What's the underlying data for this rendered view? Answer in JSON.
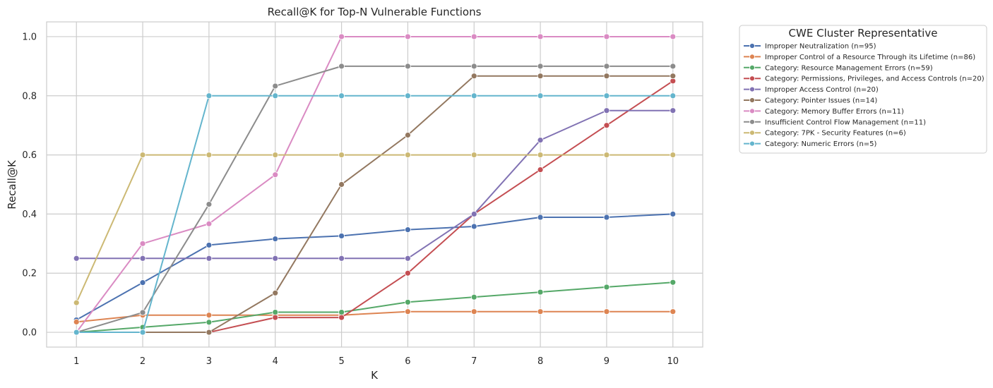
{
  "chart_data": {
    "type": "line",
    "title": "Recall@K for Top-N Vulnerable Functions",
    "xlabel": "K",
    "ylabel": "Recall@K",
    "x": [
      1,
      2,
      3,
      4,
      5,
      6,
      7,
      8,
      9,
      10
    ],
    "x_ticks": [
      "1",
      "2",
      "3",
      "4",
      "5",
      "6",
      "7",
      "8",
      "9",
      "10"
    ],
    "xlim": [
      0.55,
      10.45
    ],
    "ylim": [
      -0.05,
      1.05
    ],
    "y_ticks": [
      "0.0",
      "0.2",
      "0.4",
      "0.6",
      "0.8",
      "1.0"
    ],
    "grid": true,
    "legend": {
      "title": "CWE Cluster Representative",
      "placement": "outside-upper-right"
    },
    "series": [
      {
        "name": "Improper Neutralization (n=95)",
        "color": "#4c72b0",
        "values": [
          0.042,
          0.168,
          0.295,
          0.316,
          0.326,
          0.347,
          0.358,
          0.389,
          0.389,
          0.4
        ]
      },
      {
        "name": "Improper Control of a Resource Through its Lifetime (n=86)",
        "color": "#dd8452",
        "values": [
          0.035,
          0.058,
          0.058,
          0.058,
          0.058,
          0.07,
          0.07,
          0.07,
          0.07,
          0.07
        ]
      },
      {
        "name": "Category: Resource Management Errors (n=59)",
        "color": "#55a868",
        "values": [
          0.0,
          0.017,
          0.034,
          0.068,
          0.068,
          0.102,
          0.119,
          0.136,
          0.153,
          0.169
        ]
      },
      {
        "name": "Category: Permissions, Privileges, and Access Controls (n=20)",
        "color": "#c44e52",
        "values": [
          0.0,
          0.0,
          0.0,
          0.05,
          0.05,
          0.2,
          0.4,
          0.55,
          0.7,
          0.85
        ]
      },
      {
        "name": "Improper Access Control (n=20)",
        "color": "#8172b3",
        "values": [
          0.25,
          0.25,
          0.25,
          0.25,
          0.25,
          0.25,
          0.4,
          0.65,
          0.75,
          0.75
        ]
      },
      {
        "name": "Category: Pointer Issues (n=14)",
        "color": "#937860",
        "values": [
          0.0,
          0.0,
          0.0,
          0.133,
          0.5,
          0.667,
          0.867,
          0.867,
          0.867,
          0.867
        ]
      },
      {
        "name": "Category: Memory Buffer Errors (n=11)",
        "color": "#da8bc3",
        "values": [
          0.0,
          0.3,
          0.367,
          0.533,
          1.0,
          1.0,
          1.0,
          1.0,
          1.0,
          1.0
        ]
      },
      {
        "name": "Insufficient Control Flow Management (n=11)",
        "color": "#8c8c8c",
        "values": [
          0.0,
          0.067,
          0.433,
          0.833,
          0.9,
          0.9,
          0.9,
          0.9,
          0.9,
          0.9
        ]
      },
      {
        "name": "Category: 7PK - Security Features (n=6)",
        "color": "#ccb974",
        "values": [
          0.1,
          0.6,
          0.6,
          0.6,
          0.6,
          0.6,
          0.6,
          0.6,
          0.6,
          0.6
        ]
      },
      {
        "name": "Category: Numeric Errors (n=5)",
        "color": "#64b5cd",
        "values": [
          0.0,
          0.0,
          0.8,
          0.8,
          0.8,
          0.8,
          0.8,
          0.8,
          0.8,
          0.8
        ]
      }
    ]
  }
}
